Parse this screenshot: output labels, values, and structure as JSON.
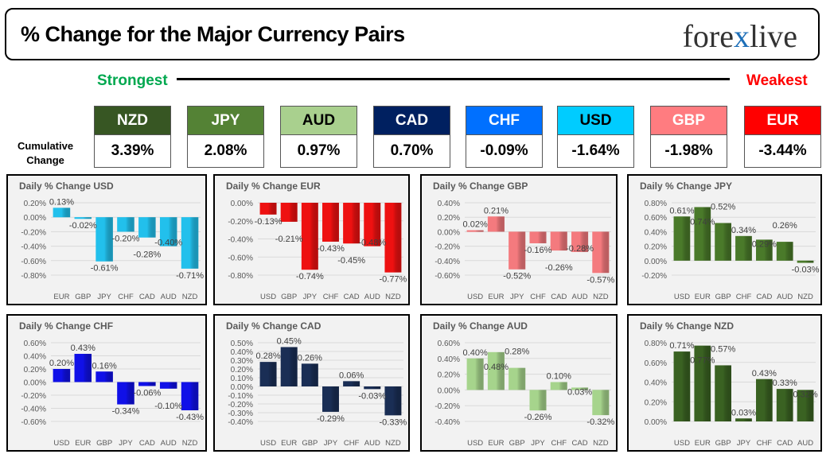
{
  "header": {
    "title": "% Change for the Major Currency Pairs",
    "logo": "forexlive",
    "strongest": "Strongest",
    "weakest": "Weakest",
    "cumulative_label_1": "Cumulative",
    "cumulative_label_2": "Change"
  },
  "ranking": [
    {
      "currency": "NZD",
      "value": "3.39%",
      "color": "#375623",
      "text": "#ffffff"
    },
    {
      "currency": "JPY",
      "value": "2.08%",
      "color": "#548235",
      "text": "#ffffff"
    },
    {
      "currency": "AUD",
      "value": "0.97%",
      "color": "#a9d08e",
      "text": "#000000"
    },
    {
      "currency": "CAD",
      "value": "0.70%",
      "color": "#002060",
      "text": "#ffffff"
    },
    {
      "currency": "CHF",
      "value": "-0.09%",
      "color": "#0070ff",
      "text": "#ffffff"
    },
    {
      "currency": "USD",
      "value": "-1.64%",
      "color": "#00ccff",
      "text": "#000000"
    },
    {
      "currency": "GBP",
      "value": "-1.98%",
      "color": "#ff7c80",
      "text": "#ffffff"
    },
    {
      "currency": "EUR",
      "value": "-3.44%",
      "color": "#ff0000",
      "text": "#ffffff"
    }
  ],
  "chart_data": [
    {
      "type": "bar",
      "title": "Daily % Change USD",
      "categories": [
        "EUR",
        "GBP",
        "JPY",
        "CHF",
        "CAD",
        "AUD",
        "NZD"
      ],
      "values": [
        0.13,
        -0.02,
        -0.61,
        -0.2,
        -0.28,
        -0.4,
        -0.71
      ],
      "ylim": [
        -0.8,
        0.2
      ],
      "ystep": 0.2,
      "color": "#22c0ec",
      "grid": true
    },
    {
      "type": "bar",
      "title": "Daily % Change EUR",
      "categories": [
        "USD",
        "GBP",
        "JPY",
        "CHF",
        "CAD",
        "AUD",
        "NZD"
      ],
      "values": [
        -0.13,
        -0.21,
        -0.74,
        -0.43,
        -0.45,
        -0.48,
        -0.77
      ],
      "ylim": [
        -0.8,
        0.0
      ],
      "ystep": 0.2,
      "color": "#ee1111",
      "grid": true
    },
    {
      "type": "bar",
      "title": "Daily % Change GBP",
      "categories": [
        "USD",
        "EUR",
        "JPY",
        "CHF",
        "CAD",
        "AUD",
        "NZD"
      ],
      "values": [
        0.02,
        0.21,
        -0.52,
        -0.16,
        -0.26,
        -0.28,
        -0.57
      ],
      "ylim": [
        -0.6,
        0.4
      ],
      "ystep": 0.2,
      "color": "#f47a7e",
      "grid": true
    },
    {
      "type": "bar",
      "title": "Daily % Change JPY",
      "categories": [
        "USD",
        "EUR",
        "GBP",
        "CHF",
        "CAD",
        "AUD",
        "NZD"
      ],
      "values": [
        0.61,
        0.74,
        0.52,
        0.34,
        0.29,
        0.26,
        -0.03
      ],
      "ylim": [
        -0.2,
        0.8
      ],
      "ystep": 0.2,
      "color": "#4a7a2a",
      "grid": true
    },
    {
      "type": "bar",
      "title": "Daily % Change CHF",
      "categories": [
        "USD",
        "EUR",
        "GBP",
        "JPY",
        "CAD",
        "AUD",
        "NZD"
      ],
      "values": [
        0.2,
        0.43,
        0.16,
        -0.34,
        -0.06,
        -0.1,
        -0.43
      ],
      "ylim": [
        -0.6,
        0.6
      ],
      "ystep": 0.2,
      "color": "#1010e8",
      "grid": true
    },
    {
      "type": "bar",
      "title": "Daily % Change CAD",
      "categories": [
        "USD",
        "EUR",
        "GBP",
        "JPY",
        "CHF",
        "AUD",
        "NZD"
      ],
      "values": [
        0.28,
        0.45,
        0.26,
        -0.29,
        0.06,
        -0.03,
        -0.33
      ],
      "ylim": [
        -0.4,
        0.5
      ],
      "ystep": 0.1,
      "color": "#1a2e55",
      "grid": true
    },
    {
      "type": "bar",
      "title": "Daily % Change AUD",
      "categories": [
        "USD",
        "EUR",
        "GBP",
        "JPY",
        "CHF",
        "CAD",
        "NZD"
      ],
      "values": [
        0.4,
        0.48,
        0.28,
        -0.26,
        0.1,
        0.03,
        -0.32
      ],
      "ylim": [
        -0.4,
        0.6
      ],
      "ystep": 0.2,
      "color": "#a6d48c",
      "grid": true
    },
    {
      "type": "bar",
      "title": "Daily % Change NZD",
      "categories": [
        "USD",
        "EUR",
        "GBP",
        "JPY",
        "CHF",
        "CAD",
        "AUD"
      ],
      "values": [
        0.71,
        0.77,
        0.57,
        0.03,
        0.43,
        0.33,
        0.32
      ],
      "ylim": [
        0.0,
        0.8
      ],
      "ystep": 0.2,
      "color": "#3a6222",
      "grid": true
    }
  ]
}
